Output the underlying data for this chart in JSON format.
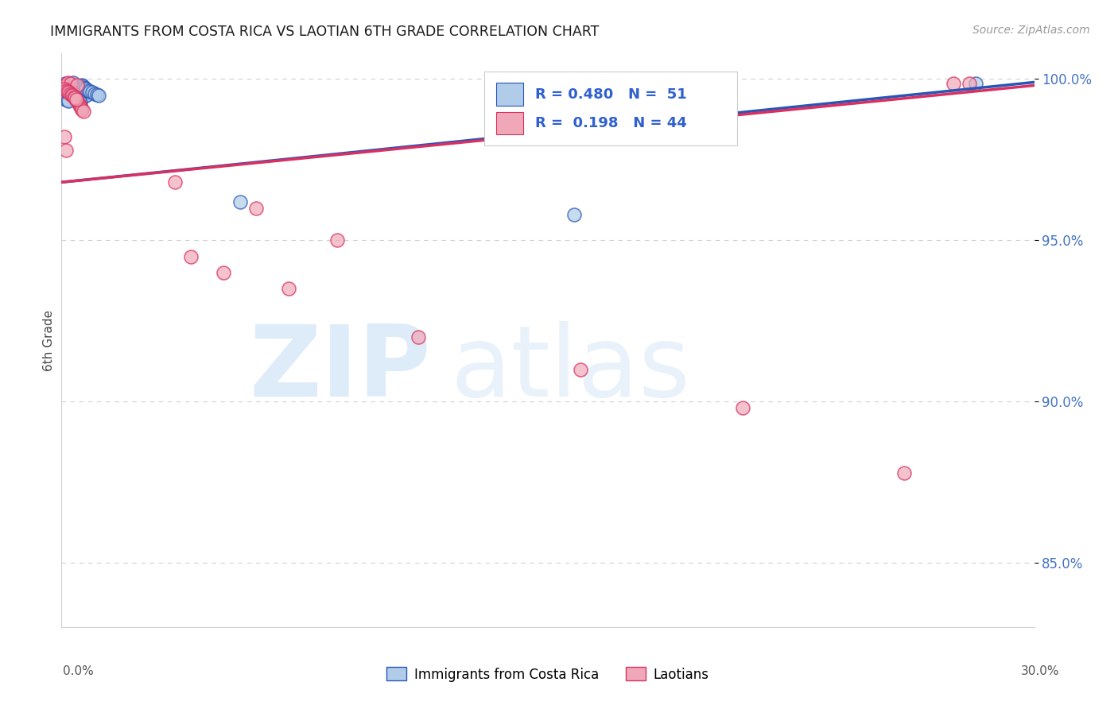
{
  "title": "IMMIGRANTS FROM COSTA RICA VS LAOTIAN 6TH GRADE CORRELATION CHART",
  "source": "Source: ZipAtlas.com",
  "ylabel": "6th Grade",
  "xmin": 0.0,
  "xmax": 0.3,
  "ymin": 0.83,
  "ymax": 1.008,
  "yticks": [
    0.85,
    0.9,
    0.95,
    1.0
  ],
  "ytick_labels": [
    "85.0%",
    "90.0%",
    "95.0%",
    "100.0%"
  ],
  "blue_face": "#b0cce8",
  "blue_edge": "#2855b8",
  "pink_face": "#f0a8b8",
  "pink_edge": "#d83060",
  "blue_line": "#2855b8",
  "pink_line": "#d83060",
  "label_blue": "Immigrants from Costa Rica",
  "label_pink": "Laotians",
  "cr_x": [
    0.0012,
    0.0015,
    0.0018,
    0.0022,
    0.0025,
    0.0028,
    0.0031,
    0.0035,
    0.0038,
    0.0042,
    0.0045,
    0.0048,
    0.0052,
    0.0055,
    0.0058,
    0.0062,
    0.0065,
    0.0068,
    0.0072,
    0.0075,
    0.0012,
    0.0016,
    0.0019,
    0.0023,
    0.0027,
    0.0031,
    0.0034,
    0.0038,
    0.0041,
    0.0045,
    0.0048,
    0.0052,
    0.0055,
    0.0058,
    0.0062,
    0.0065,
    0.0068,
    0.0072,
    0.0075,
    0.0082,
    0.0088,
    0.0095,
    0.0102,
    0.011,
    0.0115,
    0.0012,
    0.0018,
    0.0022,
    0.055,
    0.158,
    0.282
  ],
  "cr_y": [
    0.9985,
    0.998,
    0.9978,
    0.9985,
    0.9982,
    0.9975,
    0.997,
    0.9988,
    0.9972,
    0.9965,
    0.9968,
    0.9972,
    0.996,
    0.9958,
    0.9968,
    0.9955,
    0.9952,
    0.996,
    0.9948,
    0.995,
    0.9972,
    0.9968,
    0.9965,
    0.9962,
    0.9958,
    0.9955,
    0.9952,
    0.9948,
    0.9945,
    0.9942,
    0.9938,
    0.9935,
    0.9932,
    0.9928,
    0.9982,
    0.9978,
    0.9975,
    0.9972,
    0.9968,
    0.9965,
    0.9962,
    0.9958,
    0.9955,
    0.9952,
    0.9948,
    0.9938,
    0.9935,
    0.9932,
    0.962,
    0.958,
    0.9985
  ],
  "la_x": [
    0.001,
    0.0013,
    0.0016,
    0.0019,
    0.0022,
    0.0025,
    0.0028,
    0.0031,
    0.0034,
    0.0037,
    0.004,
    0.0043,
    0.0046,
    0.0049,
    0.0052,
    0.0055,
    0.0058,
    0.0061,
    0.0064,
    0.0067,
    0.001,
    0.0014,
    0.0018,
    0.0022,
    0.0026,
    0.003,
    0.0034,
    0.0038,
    0.0042,
    0.0046,
    0.001,
    0.0013,
    0.035,
    0.06,
    0.085,
    0.04,
    0.05,
    0.07,
    0.11,
    0.16,
    0.21,
    0.26,
    0.275,
    0.28
  ],
  "la_y": [
    0.9982,
    0.9978,
    0.9975,
    0.9988,
    0.997,
    0.9965,
    0.9985,
    0.996,
    0.9955,
    0.995,
    0.9945,
    0.994,
    0.9935,
    0.998,
    0.9925,
    0.992,
    0.9915,
    0.991,
    0.9905,
    0.99,
    0.9968,
    0.9965,
    0.9962,
    0.9958,
    0.9955,
    0.9952,
    0.9948,
    0.9945,
    0.9942,
    0.9938,
    0.982,
    0.978,
    0.968,
    0.96,
    0.95,
    0.945,
    0.94,
    0.935,
    0.92,
    0.91,
    0.898,
    0.878,
    0.9985,
    0.9985
  ]
}
